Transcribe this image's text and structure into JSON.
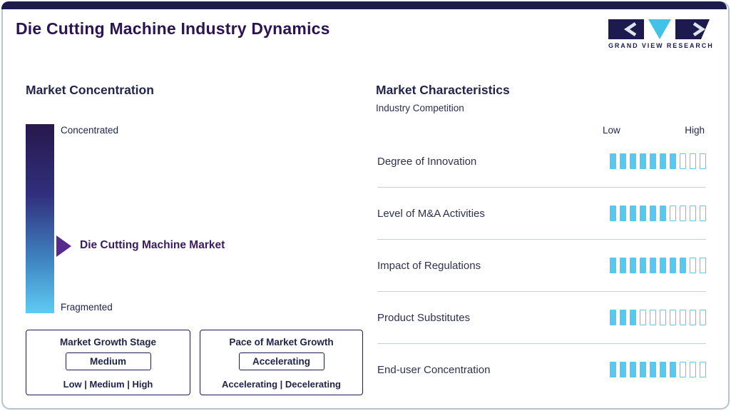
{
  "colors": {
    "navy": "#1d1b4e",
    "title-purple": "#2c1452",
    "cyan": "#57c8f0",
    "pointer-purple": "#562a8e",
    "text": "#262b49",
    "separator": "#c9ced8",
    "border": "#b5c3d2",
    "gradient-top": "#27184c",
    "gradient-mid": "#31307e",
    "gradient-low": "#3f85c2",
    "gradient-bottom": "#5ecbf2"
  },
  "header": {
    "title": "Die Cutting Machine Industry Dynamics",
    "logo_text": "GRAND VIEW RESEARCH"
  },
  "market_concentration": {
    "heading": "Market Concentration",
    "scale_top": "Concentrated",
    "scale_bottom": "Fragmented",
    "pointer_label": "Die Cutting Machine Market",
    "growth_stage": {
      "title": "Market Growth Stage",
      "value": "Medium",
      "options": "Low | Medium | High"
    },
    "pace_of_growth": {
      "title": "Pace of Market Growth",
      "value": "Accelerating",
      "options": "Accelerating | Decelerating"
    }
  },
  "market_characteristics": {
    "heading": "Market Characteristics",
    "subheading": "Industry Competition",
    "scale_low": "Low",
    "scale_high": "High",
    "rows": [
      {
        "label": "Degree of Innovation",
        "filled": 7,
        "total": 10
      },
      {
        "label": "Level of M&A Activities",
        "filled": 6,
        "total": 10
      },
      {
        "label": "Impact of Regulations",
        "filled": 8,
        "total": 10
      },
      {
        "label": "Product Substitutes",
        "filled": 3,
        "total": 10
      },
      {
        "label": "End-user Concentration",
        "filled": 7,
        "total": 10
      }
    ]
  },
  "chart_data": {
    "type": "bar",
    "title": "Market Characteristics - Industry Competition",
    "categories": [
      "Degree of Innovation",
      "Level of M&A Activities",
      "Impact of Regulations",
      "Product Substitutes",
      "End-user Concentration"
    ],
    "values": [
      7,
      6,
      8,
      3,
      7
    ],
    "value_scale": "filled segments out of 10, Low to High",
    "xlim": [
      0,
      10
    ],
    "legend": null,
    "annotations": {
      "market_concentration_pointer": "Die Cutting Machine Market positioned between Concentrated (top) and Fragmented (bottom), lower-middle of gradient",
      "market_growth_stage": "Medium",
      "pace_of_market_growth": "Accelerating"
    }
  }
}
